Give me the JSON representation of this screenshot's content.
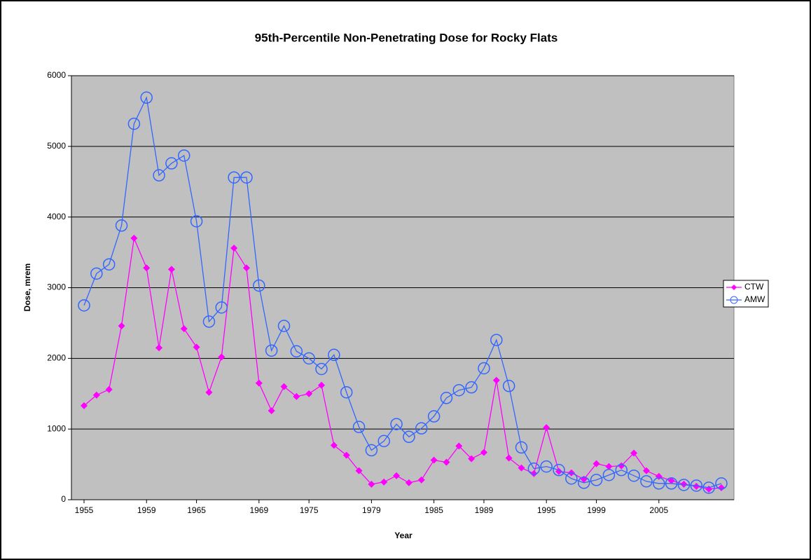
{
  "chart_data": {
    "type": "line",
    "title": "95th-Percentile Non-Penetrating Dose for Rocky Flats",
    "x_label": "Year",
    "y_label": "Dose, mrem",
    "categories": [
      "1955",
      null,
      null,
      null,
      null,
      "1959",
      null,
      null,
      null,
      "1965",
      null,
      null,
      null,
      null,
      "1969",
      null,
      null,
      null,
      "1975",
      null,
      null,
      null,
      null,
      "1979",
      null,
      null,
      null,
      null,
      "1985",
      null,
      null,
      null,
      "1989",
      null,
      null,
      null,
      null,
      "1995",
      null,
      null,
      null,
      "1999",
      null,
      null,
      null,
      null,
      "2005",
      null,
      null,
      null,
      null,
      null
    ],
    "series": [
      {
        "name": "CTW",
        "color": "#ff00ff",
        "marker": "diamond",
        "values": [
          1330,
          1480,
          1560,
          2460,
          3700,
          3280,
          2150,
          3260,
          2420,
          2160,
          1520,
          2020,
          3560,
          3280,
          1650,
          1260,
          1600,
          1460,
          1500,
          1620,
          770,
          630,
          410,
          220,
          250,
          340,
          240,
          280,
          560,
          530,
          760,
          580,
          670,
          1690,
          590,
          450,
          370,
          1020,
          400,
          380,
          290,
          510,
          470,
          480,
          660,
          410,
          330,
          270,
          220,
          190,
          150,
          170
        ]
      },
      {
        "name": "AMW",
        "color": "#3366ff",
        "marker": "circle",
        "values": [
          2750,
          3200,
          3330,
          3880,
          5320,
          5690,
          4590,
          4760,
          4870,
          3940,
          2520,
          2720,
          4560,
          4560,
          3030,
          2110,
          2460,
          2100,
          2000,
          1850,
          2050,
          1520,
          1030,
          700,
          830,
          1070,
          890,
          1010,
          1180,
          1440,
          1550,
          1590,
          1860,
          2260,
          1610,
          740,
          440,
          470,
          420,
          300,
          240,
          280,
          350,
          420,
          340,
          260,
          230,
          230,
          210,
          200,
          170,
          230
        ]
      }
    ],
    "ylim": [
      0,
      6000
    ],
    "yticks": [
      0,
      1000,
      2000,
      3000,
      4000,
      5000,
      6000
    ],
    "grid": true,
    "plot_background": "#c0c0c0",
    "legend": "right"
  }
}
